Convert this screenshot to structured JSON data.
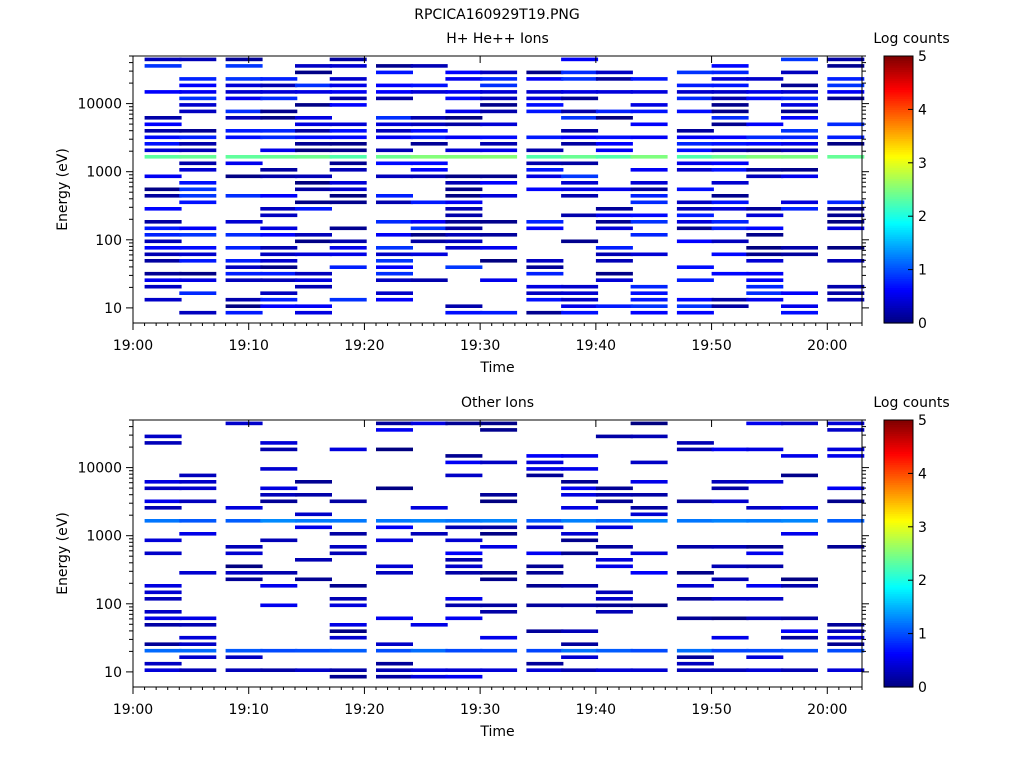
{
  "figure_title": "RPCICA160929T19.PNG",
  "colors": {
    "colormap": [
      "#00007f",
      "#0000ff",
      "#007fff",
      "#00ffff",
      "#7fff7f",
      "#ffff00",
      "#ff7f00",
      "#ff0000",
      "#7f0000"
    ],
    "axis": "#000000",
    "background": "#ffffff"
  },
  "chart_data": [
    {
      "type": "heatmap",
      "title": "H+ He++ Ions",
      "xlabel": "Time",
      "ylabel": "Energy (eV)",
      "colorbar_label": "Log counts",
      "xlim": [
        "19:00",
        "20:03"
      ],
      "x_ticks": [
        "19:00",
        "19:10",
        "19:20",
        "19:30",
        "19:40",
        "19:50",
        "20:00"
      ],
      "y_scale": "log",
      "ylim": [
        6,
        50000
      ],
      "y_ticks": [
        "10",
        "100",
        "1000",
        "10000"
      ],
      "colorbar_range": [
        0,
        5
      ],
      "colorbar_ticks": [
        "0",
        "1",
        "2",
        "3",
        "4",
        "5"
      ],
      "time_bins": [
        "19:01",
        "19:04",
        "19:08",
        "19:11",
        "19:14",
        "19:17",
        "19:21",
        "19:24",
        "19:27",
        "19:30",
        "19:34",
        "19:37",
        "19:40",
        "19:43",
        "19:47",
        "19:50",
        "19:53",
        "19:56",
        "20:00"
      ],
      "bands": [
        {
          "energy": 1650,
          "level": 2.4,
          "note": "persistent band near 1.7 keV"
        },
        {
          "energy": 3200,
          "level": 0.7
        },
        {
          "energy": 15000,
          "level": 0.5
        }
      ]
    },
    {
      "type": "heatmap",
      "title": "Other Ions",
      "xlabel": "Time",
      "ylabel": "Energy (eV)",
      "colorbar_label": "Log counts",
      "xlim": [
        "19:00",
        "20:03"
      ],
      "x_ticks": [
        "19:00",
        "19:10",
        "19:20",
        "19:30",
        "19:40",
        "19:50",
        "20:00"
      ],
      "y_scale": "log",
      "ylim": [
        6,
        50000
      ],
      "y_ticks": [
        "10",
        "100",
        "1000",
        "10000"
      ],
      "colorbar_range": [
        0,
        5
      ],
      "colorbar_ticks": [
        "0",
        "1",
        "2",
        "3",
        "4",
        "5"
      ],
      "time_bins": [
        "19:01",
        "19:04",
        "19:08",
        "19:11",
        "19:14",
        "19:17",
        "19:21",
        "19:24",
        "19:27",
        "19:30",
        "19:34",
        "19:37",
        "19:40",
        "19:43",
        "19:47",
        "19:50",
        "19:53",
        "19:56",
        "20:00"
      ],
      "bands": [
        {
          "energy": 1650,
          "level": 1.2
        },
        {
          "energy": 20,
          "level": 1.1
        },
        {
          "energy": 10,
          "level": 0.3
        }
      ]
    }
  ]
}
